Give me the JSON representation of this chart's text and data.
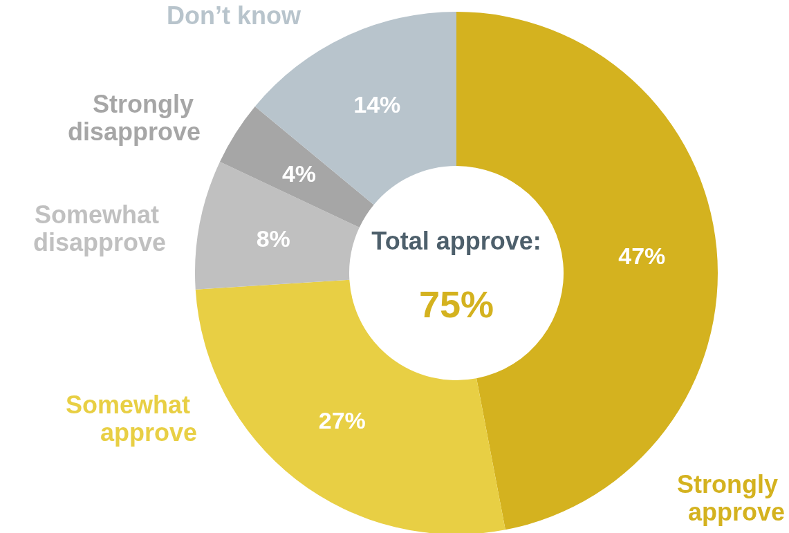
{
  "chart_data": {
    "type": "donut",
    "categories": [
      "Strongly approve",
      "Somewhat approve",
      "Somewhat disapprove",
      "Strongly disapprove",
      "Don’t know"
    ],
    "values": [
      47,
      27,
      8,
      4,
      14
    ],
    "value_labels": [
      "47%",
      "27%",
      "8%",
      "4%",
      "14%"
    ],
    "colors": [
      "#d4b21f",
      "#e8cf44",
      "#c0c0c0",
      "#a6a6a6",
      "#b8c4cc"
    ],
    "annotations": [
      "Total approve:",
      "75%"
    ],
    "legend": false
  }
}
